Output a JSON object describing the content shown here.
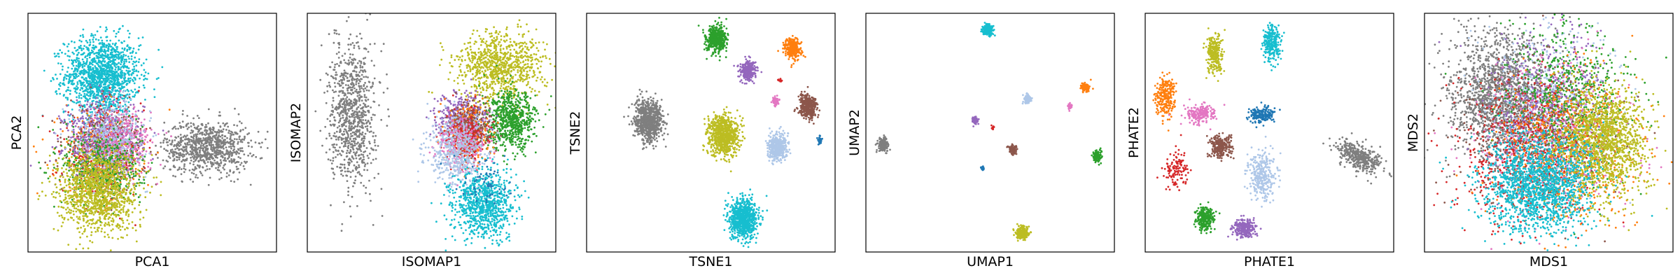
{
  "palette": {
    "blue": "#1f77b4",
    "orange": "#ff7f0e",
    "green": "#2ca02c",
    "red": "#d62728",
    "purple": "#9467bd",
    "brown": "#8c564b",
    "pink": "#e377c2",
    "gray": "#7f7f7f",
    "olive": "#bcbd22",
    "cyan": "#17becf",
    "lightblue": "#aec7e8"
  },
  "chart_data": [
    {
      "type": "scatter",
      "title": "",
      "xlabel": "PCA1",
      "ylabel": "PCA2",
      "ticks": false,
      "grid": false,
      "legend": "none",
      "xlim": [
        0,
        1
      ],
      "ylim": [
        0,
        1
      ],
      "clusters": [
        {
          "color": "cyan",
          "cx": 0.3,
          "cy": 0.74,
          "sx": 0.075,
          "sy": 0.08,
          "n": 1400
        },
        {
          "color": "gray",
          "cx": 0.72,
          "cy": 0.44,
          "sx": 0.085,
          "sy": 0.055,
          "n": 900
        },
        {
          "color": "orange",
          "cx": 0.28,
          "cy": 0.4,
          "sx": 0.08,
          "sy": 0.09,
          "n": 400
        },
        {
          "color": "red",
          "cx": 0.3,
          "cy": 0.42,
          "sx": 0.08,
          "sy": 0.09,
          "n": 350
        },
        {
          "color": "brown",
          "cx": 0.32,
          "cy": 0.45,
          "sx": 0.075,
          "sy": 0.08,
          "n": 350
        },
        {
          "color": "purple",
          "cx": 0.3,
          "cy": 0.48,
          "sx": 0.08,
          "sy": 0.08,
          "n": 500
        },
        {
          "color": "pink",
          "cx": 0.38,
          "cy": 0.46,
          "sx": 0.06,
          "sy": 0.07,
          "n": 350
        },
        {
          "color": "lightblue",
          "cx": 0.33,
          "cy": 0.47,
          "sx": 0.075,
          "sy": 0.08,
          "n": 400
        },
        {
          "color": "green",
          "cx": 0.3,
          "cy": 0.35,
          "sx": 0.08,
          "sy": 0.08,
          "n": 450
        },
        {
          "color": "olive",
          "cx": 0.28,
          "cy": 0.25,
          "sx": 0.08,
          "sy": 0.085,
          "n": 1200
        }
      ]
    },
    {
      "type": "scatter",
      "title": "",
      "xlabel": "ISOMAP1",
      "ylabel": "ISOMAP2",
      "ticks": false,
      "grid": false,
      "legend": "none",
      "xlim": [
        0,
        1
      ],
      "ylim": [
        0,
        1
      ],
      "clusters": [
        {
          "color": "gray",
          "cx": 0.18,
          "cy": 0.58,
          "sx": 0.045,
          "sy": 0.15,
          "n": 900
        },
        {
          "color": "olive",
          "cx": 0.78,
          "cy": 0.78,
          "sx": 0.09,
          "sy": 0.07,
          "n": 900
        },
        {
          "color": "green",
          "cx": 0.82,
          "cy": 0.55,
          "sx": 0.05,
          "sy": 0.06,
          "n": 700
        },
        {
          "color": "purple",
          "cx": 0.62,
          "cy": 0.56,
          "sx": 0.05,
          "sy": 0.05,
          "n": 400
        },
        {
          "color": "orange",
          "cx": 0.65,
          "cy": 0.5,
          "sx": 0.04,
          "sy": 0.06,
          "n": 350
        },
        {
          "color": "brown",
          "cx": 0.66,
          "cy": 0.52,
          "sx": 0.04,
          "sy": 0.05,
          "n": 300
        },
        {
          "color": "red",
          "cx": 0.64,
          "cy": 0.48,
          "sx": 0.04,
          "sy": 0.06,
          "n": 250
        },
        {
          "color": "pink",
          "cx": 0.62,
          "cy": 0.45,
          "sx": 0.05,
          "sy": 0.06,
          "n": 250
        },
        {
          "color": "lightblue",
          "cx": 0.6,
          "cy": 0.42,
          "sx": 0.06,
          "sy": 0.07,
          "n": 500
        },
        {
          "color": "cyan",
          "cx": 0.71,
          "cy": 0.2,
          "sx": 0.06,
          "sy": 0.07,
          "n": 900
        },
        {
          "color": "blue",
          "cx": 0.72,
          "cy": 0.3,
          "sx": 0.05,
          "sy": 0.05,
          "n": 60
        }
      ]
    },
    {
      "type": "scatter",
      "title": "",
      "xlabel": "TSNE1",
      "ylabel": "TSNE2",
      "ticks": false,
      "grid": false,
      "legend": "none",
      "xlim": [
        0,
        1
      ],
      "ylim": [
        0,
        1
      ],
      "clusters": [
        {
          "color": "green",
          "cx": 0.52,
          "cy": 0.89,
          "sx": 0.02,
          "sy": 0.028,
          "n": 500
        },
        {
          "color": "orange",
          "cx": 0.83,
          "cy": 0.85,
          "sx": 0.016,
          "sy": 0.022,
          "n": 300
        },
        {
          "color": "purple",
          "cx": 0.65,
          "cy": 0.76,
          "sx": 0.016,
          "sy": 0.02,
          "n": 300
        },
        {
          "color": "red",
          "cx": 0.78,
          "cy": 0.72,
          "sx": 0.004,
          "sy": 0.004,
          "n": 12
        },
        {
          "color": "pink",
          "cx": 0.76,
          "cy": 0.63,
          "sx": 0.007,
          "sy": 0.01,
          "n": 60
        },
        {
          "color": "brown",
          "cx": 0.89,
          "cy": 0.61,
          "sx": 0.018,
          "sy": 0.024,
          "n": 400
        },
        {
          "color": "gray",
          "cx": 0.25,
          "cy": 0.55,
          "sx": 0.028,
          "sy": 0.04,
          "n": 800
        },
        {
          "color": "olive",
          "cx": 0.55,
          "cy": 0.49,
          "sx": 0.03,
          "sy": 0.042,
          "n": 800
        },
        {
          "color": "lightblue",
          "cx": 0.77,
          "cy": 0.44,
          "sx": 0.02,
          "sy": 0.028,
          "n": 400
        },
        {
          "color": "blue",
          "cx": 0.94,
          "cy": 0.47,
          "sx": 0.004,
          "sy": 0.008,
          "n": 40
        },
        {
          "color": "cyan",
          "cx": 0.63,
          "cy": 0.14,
          "sx": 0.028,
          "sy": 0.04,
          "n": 800
        }
      ]
    },
    {
      "type": "scatter",
      "title": "",
      "xlabel": "UMAP1",
      "ylabel": "UMAP2",
      "ticks": false,
      "grid": false,
      "legend": "none",
      "xlim": [
        0,
        1
      ],
      "ylim": [
        0,
        1
      ],
      "clusters": [
        {
          "color": "cyan",
          "cx": 0.49,
          "cy": 0.93,
          "sx": 0.01,
          "sy": 0.012,
          "n": 200
        },
        {
          "color": "orange",
          "cx": 0.88,
          "cy": 0.69,
          "sx": 0.008,
          "sy": 0.01,
          "n": 90
        },
        {
          "color": "lightblue",
          "cx": 0.65,
          "cy": 0.64,
          "sx": 0.008,
          "sy": 0.01,
          "n": 90
        },
        {
          "color": "pink",
          "cx": 0.82,
          "cy": 0.61,
          "sx": 0.004,
          "sy": 0.006,
          "n": 30
        },
        {
          "color": "purple",
          "cx": 0.44,
          "cy": 0.55,
          "sx": 0.006,
          "sy": 0.008,
          "n": 60
        },
        {
          "color": "red",
          "cx": 0.51,
          "cy": 0.52,
          "sx": 0.003,
          "sy": 0.004,
          "n": 12
        },
        {
          "color": "gray",
          "cx": 0.07,
          "cy": 0.45,
          "sx": 0.01,
          "sy": 0.014,
          "n": 200
        },
        {
          "color": "brown",
          "cx": 0.59,
          "cy": 0.43,
          "sx": 0.008,
          "sy": 0.01,
          "n": 90
        },
        {
          "color": "green",
          "cx": 0.93,
          "cy": 0.4,
          "sx": 0.008,
          "sy": 0.012,
          "n": 120
        },
        {
          "color": "blue",
          "cx": 0.47,
          "cy": 0.35,
          "sx": 0.003,
          "sy": 0.005,
          "n": 12
        },
        {
          "color": "olive",
          "cx": 0.63,
          "cy": 0.08,
          "sx": 0.012,
          "sy": 0.014,
          "n": 250
        }
      ]
    },
    {
      "type": "scatter",
      "title": "",
      "xlabel": "PHATE1",
      "ylabel": "PHATE2",
      "ticks": false,
      "grid": false,
      "legend": "none",
      "xlim": [
        0,
        1
      ],
      "ylim": [
        0,
        1
      ],
      "clusters": [
        {
          "color": "olive",
          "cx": 0.28,
          "cy": 0.83,
          "sx": 0.016,
          "sy": 0.04,
          "n": 250
        },
        {
          "color": "cyan",
          "cx": 0.51,
          "cy": 0.87,
          "sx": 0.018,
          "sy": 0.04,
          "n": 250
        },
        {
          "color": "orange",
          "cx": 0.08,
          "cy": 0.65,
          "sx": 0.018,
          "sy": 0.04,
          "n": 250
        },
        {
          "color": "pink",
          "cx": 0.22,
          "cy": 0.58,
          "sx": 0.03,
          "sy": 0.02,
          "n": 200
        },
        {
          "color": "blue",
          "cx": 0.47,
          "cy": 0.57,
          "sx": 0.024,
          "sy": 0.018,
          "n": 180
        },
        {
          "color": "brown",
          "cx": 0.3,
          "cy": 0.44,
          "sx": 0.022,
          "sy": 0.025,
          "n": 250
        },
        {
          "color": "lightblue",
          "cx": 0.47,
          "cy": 0.32,
          "sx": 0.028,
          "sy": 0.05,
          "n": 300
        },
        {
          "color": "red",
          "cx": 0.13,
          "cy": 0.34,
          "sx": 0.025,
          "sy": 0.04,
          "n": 120
        },
        {
          "color": "gray",
          "cx": 0.86,
          "cy": 0.4,
          "sx": 0.05,
          "sy": 0.025,
          "n": 400,
          "rot": -0.55
        },
        {
          "color": "green",
          "cx": 0.24,
          "cy": 0.14,
          "sx": 0.016,
          "sy": 0.025,
          "n": 250
        },
        {
          "color": "purple",
          "cx": 0.4,
          "cy": 0.1,
          "sx": 0.022,
          "sy": 0.02,
          "n": 250
        }
      ]
    },
    {
      "type": "scatter",
      "title": "",
      "xlabel": "MDS1",
      "ylabel": "MDS2",
      "ticks": false,
      "grid": false,
      "legend": "none",
      "xlim": [
        0,
        1
      ],
      "ylim": [
        0,
        1
      ],
      "clusters": [
        {
          "color": "gray",
          "cx": 0.3,
          "cy": 0.66,
          "sx": 0.1,
          "sy": 0.13,
          "n": 1600
        },
        {
          "color": "lightblue",
          "cx": 0.5,
          "cy": 0.6,
          "sx": 0.12,
          "sy": 0.16,
          "n": 600
        },
        {
          "color": "purple",
          "cx": 0.5,
          "cy": 0.62,
          "sx": 0.12,
          "sy": 0.16,
          "n": 500
        },
        {
          "color": "green",
          "cx": 0.58,
          "cy": 0.63,
          "sx": 0.12,
          "sy": 0.16,
          "n": 700
        },
        {
          "color": "pink",
          "cx": 0.52,
          "cy": 0.48,
          "sx": 0.14,
          "sy": 0.16,
          "n": 500
        },
        {
          "color": "brown",
          "cx": 0.45,
          "cy": 0.45,
          "sx": 0.14,
          "sy": 0.15,
          "n": 500
        },
        {
          "color": "red",
          "cx": 0.4,
          "cy": 0.4,
          "sx": 0.14,
          "sy": 0.15,
          "n": 500
        },
        {
          "color": "orange",
          "cx": 0.6,
          "cy": 0.42,
          "sx": 0.14,
          "sy": 0.16,
          "n": 600
        },
        {
          "color": "olive",
          "cx": 0.72,
          "cy": 0.46,
          "sx": 0.09,
          "sy": 0.12,
          "n": 1400
        },
        {
          "color": "cyan",
          "cx": 0.46,
          "cy": 0.28,
          "sx": 0.11,
          "sy": 0.1,
          "n": 1600
        }
      ]
    }
  ]
}
